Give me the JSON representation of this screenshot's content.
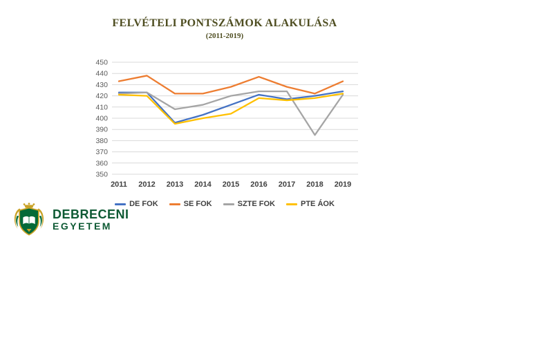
{
  "title": "FELVÉTELI PONTSZÁMOK ALAKULÁSA",
  "subtitle": "(2011-2019)",
  "chart_data": {
    "type": "line",
    "x": [
      2011,
      2012,
      2013,
      2014,
      2015,
      2016,
      2017,
      2018,
      2019
    ],
    "series": [
      {
        "name": "DE FOK",
        "color": "#4472C4",
        "values": [
          423,
          423,
          396,
          403,
          412,
          421,
          417,
          420,
          424
        ]
      },
      {
        "name": "SE FOK",
        "color": "#ED7D31",
        "values": [
          433,
          438,
          422,
          422,
          428,
          437,
          428,
          422,
          433
        ]
      },
      {
        "name": "SZTE FOK",
        "color": "#A5A5A5",
        "values": [
          422,
          423,
          408,
          412,
          420,
          424,
          424,
          385,
          421
        ]
      },
      {
        "name": "PTE ÁOK",
        "color": "#FFC000",
        "values": [
          421,
          420,
          395,
          400,
          404,
          418,
          416,
          418,
          422
        ]
      }
    ],
    "ylim": [
      350,
      450
    ],
    "ytick_step": 10,
    "yticks": [
      350,
      360,
      370,
      380,
      390,
      400,
      410,
      420,
      430,
      440,
      450
    ],
    "grid": true,
    "legend_position": "bottom",
    "title": "FELVÉTELI PONTSZÁMOK ALAKULÁSA",
    "subtitle": "(2011-2019)",
    "xlabel": "",
    "ylabel": ""
  },
  "logo": {
    "line1": "DEBRECENI",
    "line2": "EGYETEM"
  },
  "colors": {
    "title_text": "#4E4D20",
    "axis_text": "#595959",
    "x_axis_text": "#404040",
    "gridline": "#D9D9D9",
    "logo_shield_green": "#046A38",
    "logo_gold": "#C9A227",
    "logo_text_green": "#0E5A34"
  }
}
